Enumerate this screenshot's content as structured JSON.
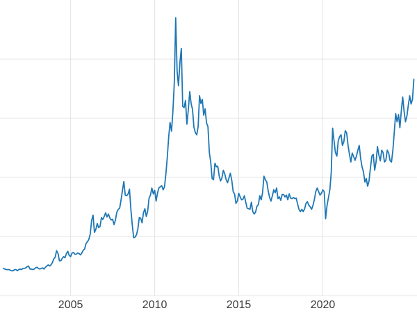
{
  "chart_data": {
    "type": "line",
    "title": "",
    "xlabel": "",
    "ylabel": "",
    "legend": "none",
    "grid": "on",
    "background": "#ffffff",
    "line_color": "#1f77b4",
    "grid_color": "#e4e4e4",
    "tick_color": "#3b3b3b",
    "xlim": [
      2000.8,
      2025.6
    ],
    "ylim": [
      0,
      50
    ],
    "ygrid": [
      0,
      10,
      20,
      30,
      40
    ],
    "xticks": [
      {
        "value": 2005,
        "label": "2005"
      },
      {
        "value": 2010,
        "label": "2010"
      },
      {
        "value": 2015,
        "label": "2015"
      },
      {
        "value": 2020,
        "label": "2020"
      }
    ],
    "series_name": "price",
    "x_start": 2001.0,
    "x_step": 0.08333,
    "values": [
      4.6,
      4.5,
      4.4,
      4.4,
      4.4,
      4.3,
      4.2,
      4.2,
      4.4,
      4.4,
      4.2,
      4.4,
      4.5,
      4.4,
      4.6,
      4.6,
      4.7,
      4.9,
      5.0,
      4.5,
      4.5,
      4.4,
      4.5,
      4.7,
      4.8,
      4.6,
      4.5,
      4.6,
      4.7,
      4.5,
      4.8,
      5.0,
      5.2,
      5.0,
      5.2,
      5.6,
      6.2,
      6.5,
      7.6,
      7.1,
      5.9,
      5.9,
      6.3,
      6.6,
      6.4,
      7.1,
      7.5,
      6.8,
      6.6,
      7.2,
      7.3,
      7.0,
      7.0,
      7.2,
      7.1,
      6.9,
      7.2,
      7.7,
      7.9,
      8.8,
      9.1,
      9.5,
      10.4,
      12.7,
      13.6,
      10.7,
      11.2,
      12.2,
      11.5,
      11.7,
      13.2,
      12.9,
      13.4,
      14.0,
      13.3,
      13.8,
      13.1,
      12.8,
      12.9,
      12.0,
      12.8,
      14.1,
      14.6,
      14.8,
      16.2,
      17.8,
      19.3,
      17.0,
      16.9,
      17.2,
      18.0,
      14.6,
      12.0,
      9.8,
      9.9,
      10.3,
      11.3,
      13.2,
      13.1,
      12.3,
      14.0,
      14.7,
      13.4,
      14.3,
      16.5,
      17.0,
      18.2,
      17.2,
      17.8,
      16.0,
      17.3,
      18.2,
      18.4,
      18.6,
      17.9,
      18.4,
      20.6,
      23.4,
      26.8,
      29.3,
      27.8,
      31.2,
      36.0,
      47.0,
      38.0,
      35.5,
      39.5,
      41.8,
      32.0,
      31.8,
      33.0,
      29.0,
      31.5,
      34.5,
      32.5,
      31.5,
      28.5,
      27.6,
      27.2,
      28.6,
      33.8,
      32.5,
      33.2,
      30.5,
      31.6,
      29.2,
      28.6,
      24.2,
      22.6,
      19.8,
      19.6,
      22.4,
      21.8,
      21.9,
      20.3,
      19.4,
      19.9,
      21.2,
      20.6,
      19.6,
      19.1,
      19.9,
      20.7,
      19.5,
      17.6,
      17.2,
      15.6,
      16.0,
      17.3,
      16.7,
      16.2,
      16.3,
      16.9,
      15.8,
      14.8,
      14.7,
      14.6,
      15.8,
      14.2,
      13.8,
      14.1,
      15.1,
      15.4,
      16.9,
      16.2,
      17.4,
      20.2,
      19.6,
      19.2,
      17.7,
      16.6,
      16.0,
      16.9,
      17.9,
      17.4,
      18.2,
      16.4,
      16.7,
      16.1,
      17.1,
      17.1,
      16.7,
      17.0,
      16.2,
      17.2,
      16.5,
      16.4,
      16.6,
      16.4,
      16.5,
      15.5,
      14.6,
      14.2,
      14.6,
      14.2,
      14.7,
      15.6,
      15.9,
      15.3,
      15.0,
      14.6,
      15.3,
      16.3,
      17.6,
      18.2,
      17.6,
      17.0,
      17.3,
      17.9,
      17.6,
      13.0,
      15.2,
      16.6,
      17.9,
      20.8,
      28.3,
      26.2,
      24.2,
      23.6,
      26.2,
      26.9,
      27.2,
      25.4,
      26.0,
      27.9,
      27.5,
      25.4,
      23.9,
      22.6,
      24.1,
      23.5,
      22.9,
      23.6,
      24.6,
      25.4,
      23.2,
      21.8,
      20.9,
      19.2,
      19.8,
      18.5,
      19.4,
      21.6,
      23.6,
      23.9,
      21.2,
      22.6,
      25.2,
      23.8,
      22.8,
      24.6,
      24.2,
      22.6,
      22.9,
      24.6,
      24.1,
      22.8,
      22.6,
      24.6,
      27.6,
      30.8,
      29.4,
      30.6,
      28.4,
      31.2,
      33.6,
      31.2,
      29.4,
      30.4,
      32.2,
      33.8,
      32.4,
      33.2,
      36.6
    ]
  }
}
